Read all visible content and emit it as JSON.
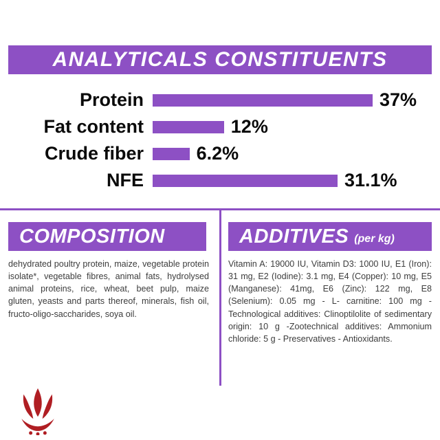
{
  "theme": {
    "purple": "#8d50c4",
    "logo_red": "#b01e23",
    "text_dark": "#3c3c3c",
    "background": "#ffffff"
  },
  "header": {
    "title": "ANALYTICALS CONSTITUENTS"
  },
  "chart_data": {
    "type": "bar",
    "orientation": "horizontal",
    "title": "ANALYTICALS CONSTITUENTS",
    "categories": [
      "Protein",
      "Fat content",
      "Crude fiber",
      "NFE"
    ],
    "values": [
      37,
      12,
      6.2,
      31.1
    ],
    "value_labels": [
      "37%",
      "12%",
      "6.2%",
      "31.1%"
    ],
    "xlabel": "",
    "ylabel": "",
    "xlim": [
      0,
      37
    ],
    "grid": false,
    "legend": false,
    "bar_color": "#8d50c4"
  },
  "composition": {
    "title": "COMPOSITION",
    "text": "dehydrated poultry protein, maize, vegetable protein isolate*, vegetable fibres, animal fats, hydrolysed animal proteins, rice, wheat, beet pulp, maize gluten, yeasts and parts thereof, minerals, fish oil, fructo-oligo-saccharides, soya oil."
  },
  "additives": {
    "title": "ADDITIVES",
    "unit": "(per kg)",
    "text": "Vitamin A: 19000 IU, Vitamin D3: 1000 IU, E1 (Iron): 31 mg, E2 (Iodine): 3.1 mg, E4 (Copper): 10 mg, E5 (Manganese): 41mg, E6 (Zinc): 122 mg, E8 (Selenium): 0.05 mg - L- carnitine: 100 mg - Technological additives: Clinoptilolite of sedimentary origin: 10 g -Zootechnical additives: Ammonium chloride: 5 g - Preservatives - Antioxidants."
  },
  "brand": {
    "logo_icon": "royal-canin-crown-logo"
  }
}
